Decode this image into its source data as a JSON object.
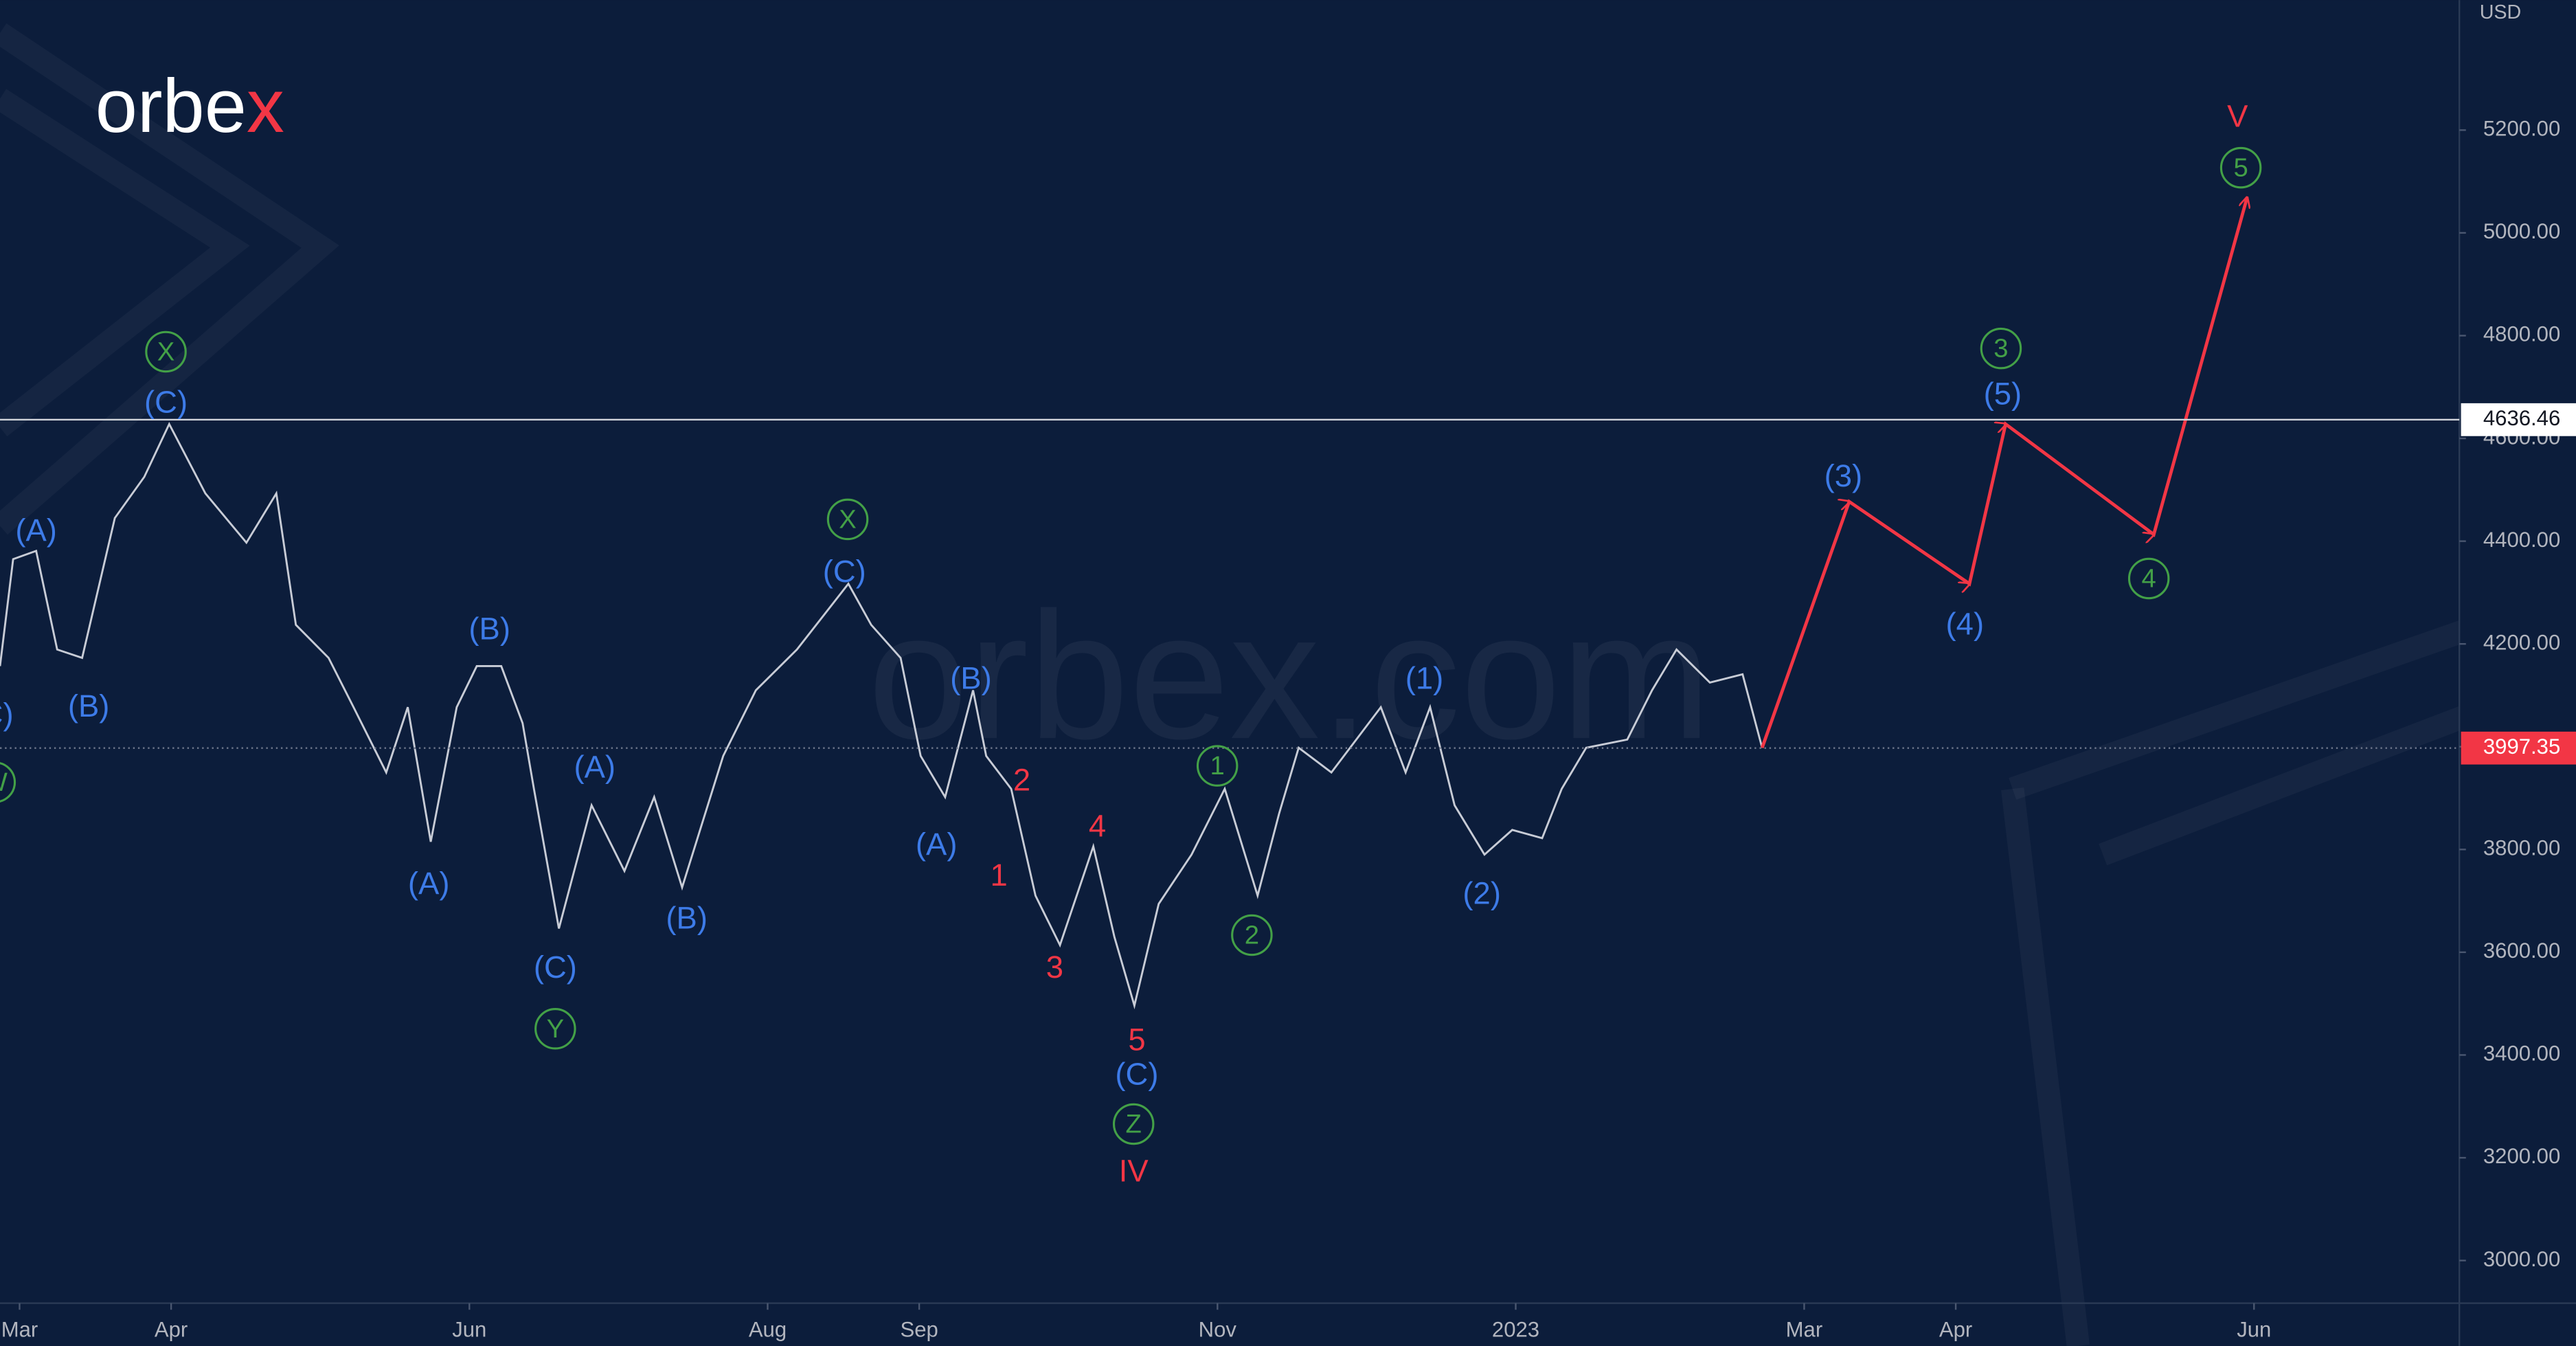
{
  "logo": "orbex",
  "watermark": "orbex.com",
  "chart_data": {
    "type": "line",
    "currency": "USD",
    "xlim": [
      -4,
      499
    ],
    "ylim": [
      2917,
      5453
    ],
    "xticks": [
      {
        "value": 0,
        "label": "Mar"
      },
      {
        "value": 31,
        "label": "Apr"
      },
      {
        "value": 92,
        "label": "Jun"
      },
      {
        "value": 153,
        "label": "Aug"
      },
      {
        "value": 184,
        "label": "Sep"
      },
      {
        "value": 245,
        "label": "Nov"
      },
      {
        "value": 306,
        "label": "2023"
      },
      {
        "value": 365,
        "label": "Mar"
      },
      {
        "value": 396,
        "label": "Apr"
      },
      {
        "value": 457,
        "label": "Jun"
      }
    ],
    "yticks": [
      {
        "value": 3000,
        "label": "3000.00"
      },
      {
        "value": 3200,
        "label": "3200.00"
      },
      {
        "value": 3400,
        "label": "3400.00"
      },
      {
        "value": 3600,
        "label": "3600.00"
      },
      {
        "value": 3800,
        "label": "3800.00"
      },
      {
        "value": 4000,
        "label": "4000.00"
      },
      {
        "value": 4200,
        "label": "4200.00"
      },
      {
        "value": 4400,
        "label": "4400.00"
      },
      {
        "value": 4600,
        "label": "4600.00"
      },
      {
        "value": 4800,
        "label": "4800.00"
      },
      {
        "value": 5000,
        "label": "5000.00"
      },
      {
        "value": 5200,
        "label": "5200.00"
      }
    ],
    "grid": false,
    "series": [
      {
        "color": "#c8ccd6",
        "arrows": false,
        "x": [
          -4.0,
          -1.3,
          3.4,
          7.7,
          12.8,
          19.5,
          25.5,
          30.6,
          38.0,
          46.4,
          52.5,
          56.5,
          63.2,
          68.3,
          75.0,
          79.4,
          84.1,
          89.4,
          93.5,
          98.5,
          102.9,
          105.2,
          110.3,
          117.0,
          123.7,
          129.8,
          135.5,
          143.9,
          150.6,
          159.0,
          169.5,
          174.2,
          180.2,
          184.3,
          189.3,
          195.0,
          197.7,
          202.8,
          207.8,
          212.8,
          219.6,
          223.9,
          228.0,
          233.0,
          239.7,
          246.5,
          253.2,
          257.6,
          261.6,
          268.3,
          278.4,
          283.5,
          288.5,
          293.5,
          299.6,
          305.3,
          311.4,
          315.4,
          320.4,
          328.8,
          333.9,
          338.9,
          345.7,
          352.4,
          356.4
        ],
        "values": [
          4157,
          4365,
          4381,
          4189,
          4173,
          4445,
          4525,
          4628,
          4493,
          4397,
          4493,
          4237,
          4173,
          4077,
          3950,
          4077,
          3815,
          4077,
          4157,
          4157,
          4046,
          3918,
          3646,
          3886,
          3758,
          3902,
          3726,
          3982,
          4110,
          4189,
          4317,
          4237,
          4173,
          3982,
          3902,
          4110,
          3982,
          3918,
          3710,
          3614,
          3806,
          3630,
          3496,
          3694,
          3790,
          3918,
          3710,
          3870,
          3998,
          3950,
          4077,
          3950,
          4077,
          3886,
          3790,
          3838,
          3822,
          3918,
          3998,
          4014,
          4110,
          4189,
          4125,
          4141,
          3998
        ]
      },
      {
        "color": "#f23645",
        "arrows": true,
        "x": [
          356.4,
          374.2,
          398.8,
          406.2,
          436.5,
          455.6
        ],
        "values": [
          3998,
          4477,
          4317,
          4628,
          4413,
          5069
        ]
      }
    ],
    "levels": [
      {
        "value": 4636.46,
        "style": "solid",
        "color": "#ffffff",
        "label_color": "#131722"
      },
      {
        "value": 3997.35,
        "style": "dotted",
        "color": "#f23645",
        "label_color": "#ffffff"
      }
    ],
    "annotations": [
      {
        "text": "(C)",
        "color": "#3d7be8",
        "style": "plain"
      },
      {
        "text": "(A)",
        "color": "#3d7be8",
        "style": "plain"
      },
      {
        "text": "(B)",
        "color": "#3d7be8",
        "style": "plain"
      },
      {
        "text": "(C)",
        "color": "#3d7be8",
        "style": "plain"
      },
      {
        "text": "(B)",
        "color": "#3d7be8",
        "style": "plain"
      },
      {
        "text": "(A)",
        "color": "#3d7be8",
        "style": "plain"
      },
      {
        "text": "(A)",
        "color": "#3d7be8",
        "style": "plain"
      },
      {
        "text": "(C)",
        "color": "#3d7be8",
        "style": "plain"
      },
      {
        "text": "(B)",
        "color": "#3d7be8",
        "style": "plain"
      },
      {
        "text": "(C)",
        "color": "#3d7be8",
        "style": "plain"
      },
      {
        "text": "(B)",
        "color": "#3d7be8",
        "style": "plain"
      },
      {
        "text": "(A)",
        "color": "#3d7be8",
        "style": "plain"
      },
      {
        "text": "(C)",
        "color": "#3d7be8",
        "style": "plain"
      },
      {
        "text": "(1)",
        "color": "#3d7be8",
        "style": "plain"
      },
      {
        "text": "(2)",
        "color": "#3d7be8",
        "style": "plain"
      },
      {
        "text": "(3)",
        "color": "#3d7be8",
        "style": "plain"
      },
      {
        "text": "(4)",
        "color": "#3d7be8",
        "style": "plain"
      },
      {
        "text": "(5)",
        "color": "#3d7be8",
        "style": "plain"
      },
      {
        "text": "W",
        "color": "#43a047",
        "style": "circle"
      },
      {
        "text": "X",
        "color": "#43a047",
        "style": "circle"
      },
      {
        "text": "X",
        "color": "#43a047",
        "style": "circle"
      },
      {
        "text": "Y",
        "color": "#43a047",
        "style": "circle"
      },
      {
        "text": "Z",
        "color": "#43a047",
        "style": "circle"
      },
      {
        "text": "1",
        "color": "#43a047",
        "style": "circle"
      },
      {
        "text": "2",
        "color": "#43a047",
        "style": "circle"
      },
      {
        "text": "3",
        "color": "#43a047",
        "style": "circle"
      },
      {
        "text": "4",
        "color": "#43a047",
        "style": "circle"
      },
      {
        "text": "5",
        "color": "#43a047",
        "style": "circle"
      },
      {
        "text": "2",
        "color": "#f23645",
        "style": "plain"
      },
      {
        "text": "1",
        "color": "#f23645",
        "style": "plain"
      },
      {
        "text": "4",
        "color": "#f23645",
        "style": "plain"
      },
      {
        "text": "3",
        "color": "#f23645",
        "style": "plain"
      },
      {
        "text": "5",
        "color": "#f23645",
        "style": "plain"
      },
      {
        "text": "IV",
        "color": "#f23645",
        "style": "plain"
      },
      {
        "text": "V",
        "color": "#f23645",
        "style": "plain"
      }
    ]
  }
}
